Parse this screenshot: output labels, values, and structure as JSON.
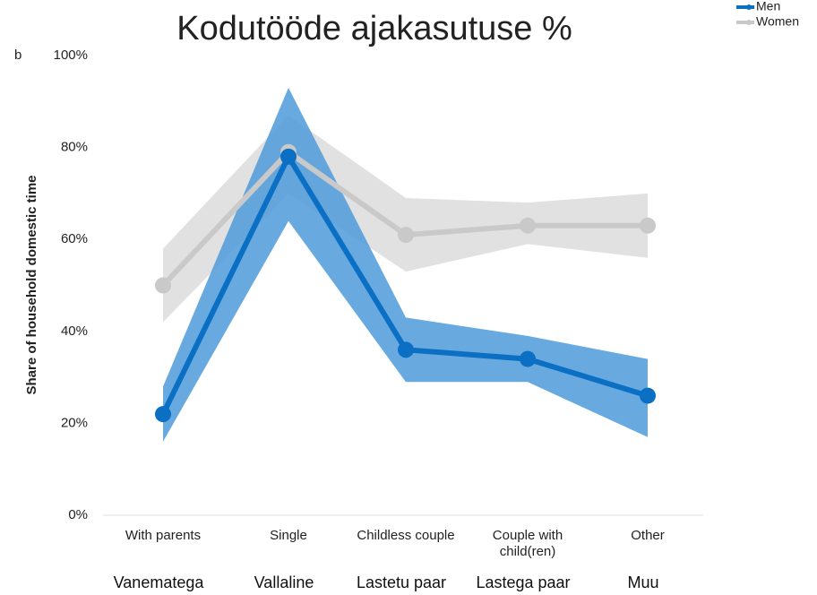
{
  "chart_data": {
    "type": "line",
    "title": "Kodutööde ajakasutuse %",
    "panel_label": "b",
    "ylabel": "Share of household domestic time",
    "categories": [
      "With parents",
      "Single",
      "Childless couple",
      "Couple with child(ren)",
      "Other"
    ],
    "category_translations": [
      "Vanematega",
      "Vallaline",
      "Lastetu paar",
      "Lastega paar",
      "Muu"
    ],
    "ylim": [
      0,
      100
    ],
    "yticks": [
      {
        "value": 0,
        "label": "0%"
      },
      {
        "value": 20,
        "label": "20%"
      },
      {
        "value": 40,
        "label": "40%"
      },
      {
        "value": 60,
        "label": "60%"
      },
      {
        "value": 80,
        "label": "80%"
      },
      {
        "value": 100,
        "label": "100%"
      }
    ],
    "legend": "top-right",
    "series": [
      {
        "name": "Women",
        "color": "#c9c9c9",
        "band_color": "#d9d9d9",
        "values": [
          50,
          79,
          61,
          63,
          63
        ],
        "lower": [
          42,
          70,
          53,
          59,
          56
        ],
        "upper": [
          58,
          87,
          69,
          68,
          70
        ]
      },
      {
        "name": "Men",
        "color": "#0b6fc4",
        "band_color": "#4e9bdb",
        "values": [
          22,
          78,
          36,
          34,
          26
        ],
        "lower": [
          16,
          64,
          29,
          29,
          17
        ],
        "upper": [
          28,
          93,
          43,
          39,
          34
        ]
      }
    ]
  }
}
